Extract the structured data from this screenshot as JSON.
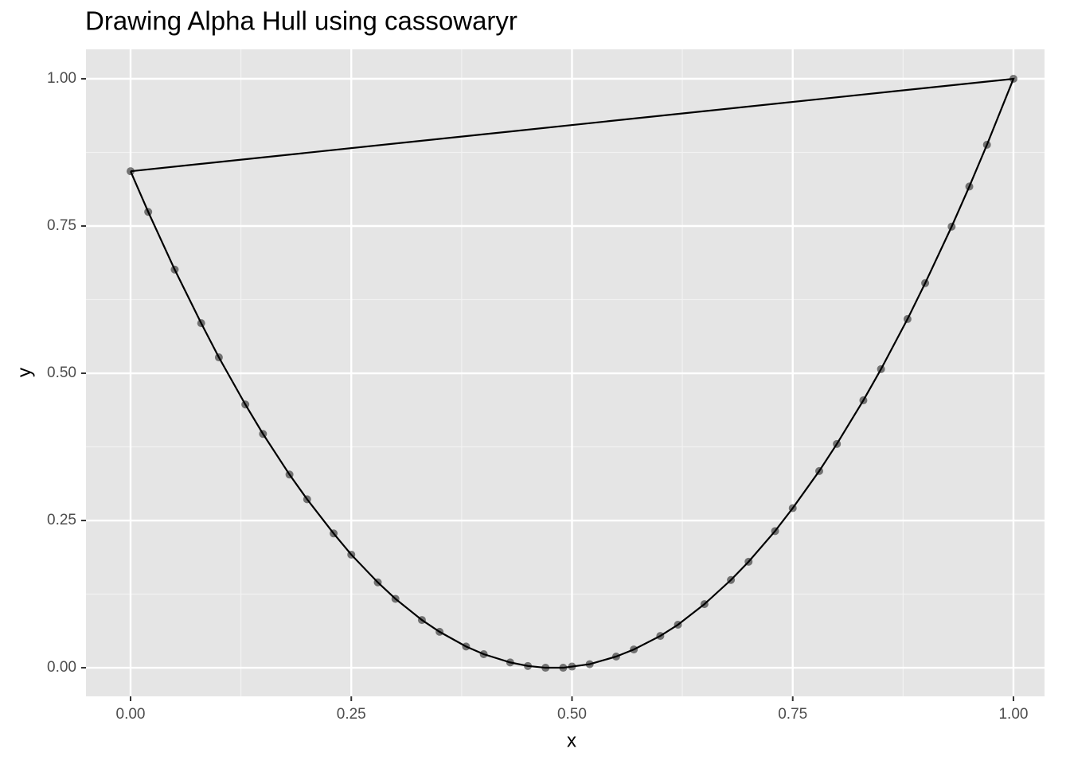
{
  "chart_data": {
    "type": "scatter",
    "title": "Drawing Alpha Hull using cassowaryr",
    "x_label": "x",
    "y_label": "y",
    "xlim": [
      -0.0505,
      1.0352
    ],
    "ylim": [
      -0.0486,
      1.05
    ],
    "xticks": [
      {
        "value": 0,
        "label": "0.00"
      },
      {
        "value": 0.25,
        "label": "0.25"
      },
      {
        "value": 0.5,
        "label": "0.50"
      },
      {
        "value": 0.75,
        "label": "0.75"
      },
      {
        "value": 1,
        "label": "1.00"
      }
    ],
    "yticks": [
      {
        "value": 0,
        "label": "0.00"
      },
      {
        "value": 0.25,
        "label": "0.25"
      },
      {
        "value": 0.5,
        "label": "0.50"
      },
      {
        "value": 0.75,
        "label": "0.75"
      },
      {
        "value": 1,
        "label": "1.00"
      }
    ],
    "x_minor_grid": [
      0.125,
      0.375,
      0.625,
      0.875
    ],
    "y_minor_grid": [
      0.125,
      0.375,
      0.625,
      0.875
    ],
    "grid": true,
    "point_color": "#000000",
    "x": [
      0,
      0.02,
      0.05,
      0.08,
      0.1,
      0.13,
      0.15,
      0.18,
      0.2,
      0.23,
      0.25,
      0.28,
      0.3,
      0.33,
      0.35,
      0.38,
      0.4,
      0.43,
      0.45,
      0.47,
      0.49,
      0.5,
      0.52,
      0.55,
      0.57,
      0.6,
      0.62,
      0.65,
      0.68,
      0.7,
      0.73,
      0.75,
      0.78,
      0.8,
      0.83,
      0.85,
      0.88,
      0.9,
      0.93,
      0.95,
      0.97,
      1.0
    ],
    "y": [
      0.843,
      0.774,
      0.676,
      0.585,
      0.527,
      0.447,
      0.397,
      0.328,
      0.286,
      0.228,
      0.192,
      0.145,
      0.117,
      0.081,
      0.061,
      0.036,
      0.023,
      0.009,
      0.003,
      0.0,
      0.0,
      0.002,
      0.006,
      0.019,
      0.031,
      0.054,
      0.073,
      0.108,
      0.149,
      0.18,
      0.232,
      0.271,
      0.334,
      0.38,
      0.454,
      0.507,
      0.592,
      0.653,
      0.749,
      0.817,
      0.888,
      1.0
    ],
    "hull": {
      "color": "#000000",
      "x": [
        0,
        1.0,
        0.97,
        0.95,
        0.93,
        0.9,
        0.88,
        0.85,
        0.83,
        0.8,
        0.78,
        0.75,
        0.73,
        0.7,
        0.68,
        0.65,
        0.62,
        0.6,
        0.57,
        0.55,
        0.52,
        0.5,
        0.49,
        0.47,
        0.45,
        0.43,
        0.4,
        0.38,
        0.35,
        0.33,
        0.3,
        0.28,
        0.25,
        0.23,
        0.2,
        0.18,
        0.15,
        0.13,
        0.1,
        0.08,
        0.05,
        0.02,
        0
      ],
      "y": [
        0.843,
        1.0,
        0.888,
        0.817,
        0.749,
        0.653,
        0.592,
        0.507,
        0.454,
        0.38,
        0.334,
        0.271,
        0.232,
        0.18,
        0.149,
        0.108,
        0.073,
        0.054,
        0.031,
        0.019,
        0.006,
        0.002,
        0.0,
        0.0,
        0.003,
        0.009,
        0.023,
        0.036,
        0.061,
        0.081,
        0.117,
        0.145,
        0.192,
        0.228,
        0.286,
        0.328,
        0.397,
        0.447,
        0.527,
        0.585,
        0.676,
        0.774,
        0.843
      ]
    }
  }
}
